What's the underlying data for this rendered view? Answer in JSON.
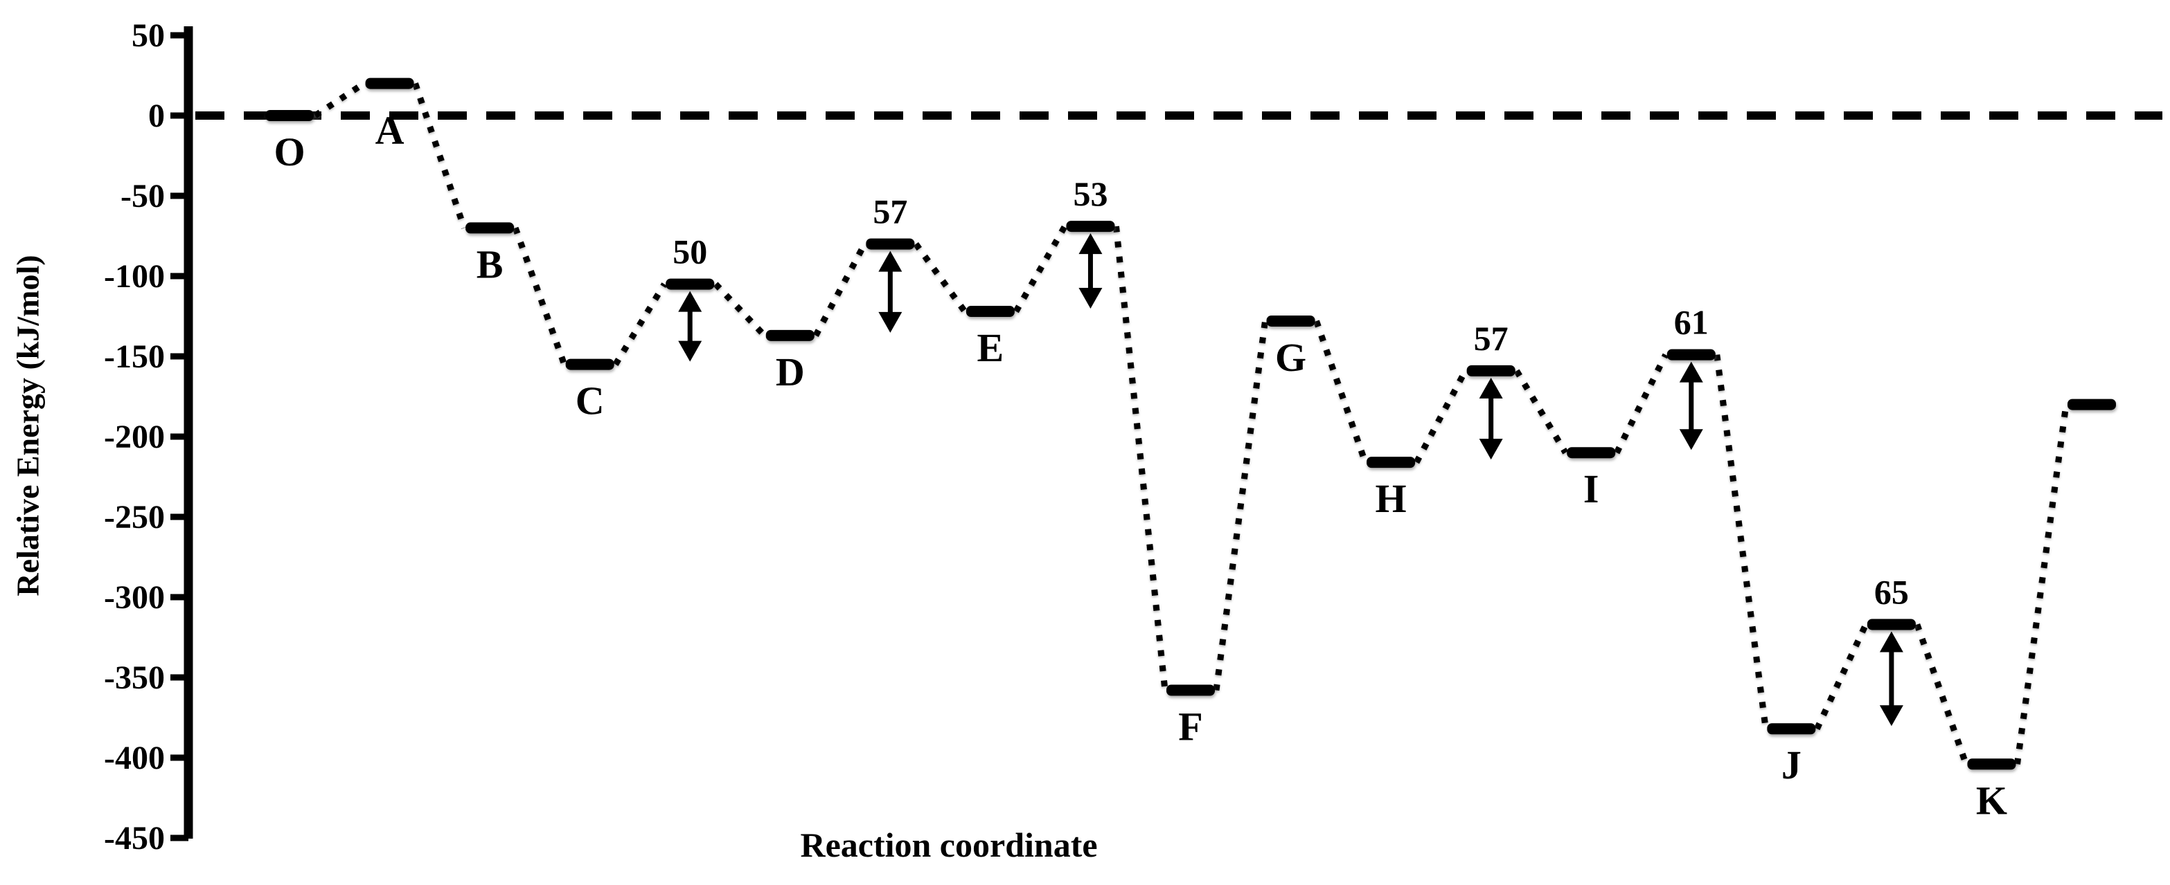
{
  "chart_data": {
    "type": "line",
    "subtype": "reaction-coordinate-energy-diagram",
    "title": "",
    "xlabel": "Reaction coordinate",
    "ylabel": "Relative Energy (kJ/mol)",
    "units": "kJ/mol",
    "ylim": [
      -450,
      50
    ],
    "yticks": [
      50,
      0,
      -50,
      -100,
      -150,
      -200,
      -250,
      -300,
      -350,
      -400,
      -450
    ],
    "baseline_energy": 0,
    "grid": false,
    "legend": "none",
    "levels": [
      {
        "id": "O",
        "label": "O",
        "energy": 0,
        "kind": "state"
      },
      {
        "id": "A",
        "label": "A",
        "energy": 20,
        "kind": "state",
        "label_dy": 87
      },
      {
        "id": "B",
        "label": "B",
        "energy": -70,
        "kind": "state"
      },
      {
        "id": "C",
        "label": "C",
        "energy": -155,
        "kind": "state"
      },
      {
        "id": "TS1",
        "label": "50",
        "energy": -105,
        "kind": "barrier",
        "barrier_height": 50
      },
      {
        "id": "D",
        "label": "D",
        "energy": -137,
        "kind": "state"
      },
      {
        "id": "TS2",
        "label": "57",
        "energy": -80,
        "kind": "barrier",
        "barrier_height": 57
      },
      {
        "id": "E",
        "label": "E",
        "energy": -122,
        "kind": "state"
      },
      {
        "id": "TS3",
        "label": "53",
        "energy": -69,
        "kind": "barrier",
        "barrier_height": 53
      },
      {
        "id": "F",
        "label": "F",
        "energy": -358,
        "kind": "state"
      },
      {
        "id": "G",
        "label": "G",
        "energy": -128,
        "kind": "state"
      },
      {
        "id": "H",
        "label": "H",
        "energy": -216,
        "kind": "state"
      },
      {
        "id": "TS4",
        "label": "57",
        "energy": -159,
        "kind": "barrier",
        "barrier_height": 57
      },
      {
        "id": "I",
        "label": "I",
        "energy": -210,
        "kind": "state"
      },
      {
        "id": "TS5",
        "label": "61",
        "energy": -149,
        "kind": "barrier",
        "barrier_height": 61
      },
      {
        "id": "J",
        "label": "J",
        "energy": -382,
        "kind": "state"
      },
      {
        "id": "TS6",
        "label": "65",
        "energy": -317,
        "kind": "barrier",
        "barrier_height": 65
      },
      {
        "id": "K",
        "label": "K",
        "energy": -404,
        "kind": "state"
      },
      {
        "id": "P",
        "label": "",
        "energy": -180,
        "kind": "state"
      }
    ]
  }
}
